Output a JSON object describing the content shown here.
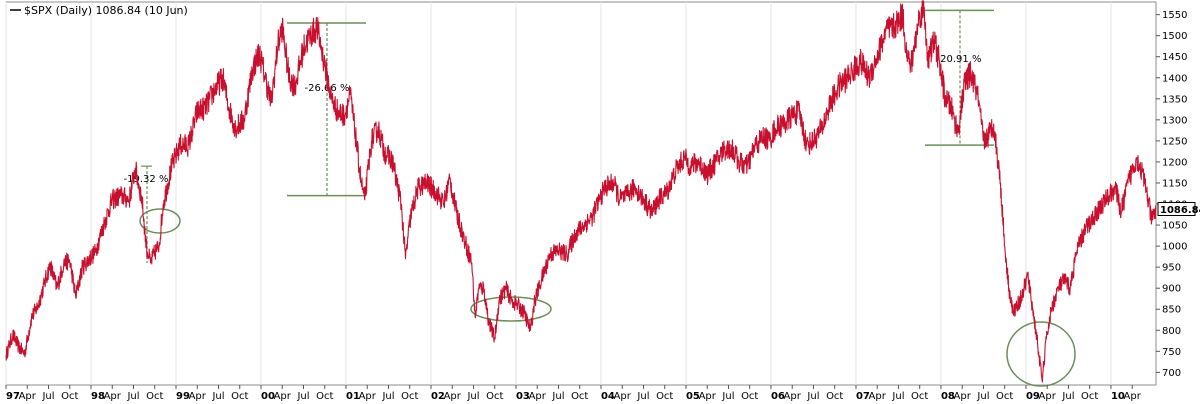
{
  "chart_data": {
    "type": "line",
    "title": "$SPX (Daily) 1086.84 (10 Jun)",
    "last_value": "1086.84",
    "ylim": [
      670,
      1580
    ],
    "y_ticks": [
      "1550",
      "1500",
      "1450",
      "1400",
      "1350",
      "1300",
      "1250",
      "1200",
      "1150",
      "1100",
      "1050",
      "1000",
      "950",
      "900",
      "850",
      "800",
      "750",
      "700"
    ],
    "x_range": [
      1997.0,
      2010.53
    ],
    "x_ticks": [
      {
        "label": "97",
        "x": 1997.0,
        "major": true
      },
      {
        "label": "Apr",
        "x": 1997.25
      },
      {
        "label": "Jul",
        "x": 1997.5
      },
      {
        "label": "Oct",
        "x": 1997.75
      },
      {
        "label": "98",
        "x": 1998.0,
        "major": true
      },
      {
        "label": "Apr",
        "x": 1998.25
      },
      {
        "label": "Jul",
        "x": 1998.5
      },
      {
        "label": "Oct",
        "x": 1998.75
      },
      {
        "label": "99",
        "x": 1999.0,
        "major": true
      },
      {
        "label": "Apr",
        "x": 1999.25
      },
      {
        "label": "Jul",
        "x": 1999.5
      },
      {
        "label": "Oct",
        "x": 1999.75
      },
      {
        "label": "00",
        "x": 2000.0,
        "major": true
      },
      {
        "label": "Apr",
        "x": 2000.25
      },
      {
        "label": "Jul",
        "x": 2000.5
      },
      {
        "label": "Oct",
        "x": 2000.75
      },
      {
        "label": "01",
        "x": 2001.0,
        "major": true
      },
      {
        "label": "Apr",
        "x": 2001.25
      },
      {
        "label": "Jul",
        "x": 2001.5
      },
      {
        "label": "Oct",
        "x": 2001.75
      },
      {
        "label": "02",
        "x": 2002.0,
        "major": true
      },
      {
        "label": "Apr",
        "x": 2002.25
      },
      {
        "label": "Jul",
        "x": 2002.5
      },
      {
        "label": "Oct",
        "x": 2002.75
      },
      {
        "label": "03",
        "x": 2003.0,
        "major": true
      },
      {
        "label": "Apr",
        "x": 2003.25
      },
      {
        "label": "Jul",
        "x": 2003.5
      },
      {
        "label": "Oct",
        "x": 2003.75
      },
      {
        "label": "04",
        "x": 2004.0,
        "major": true
      },
      {
        "label": "Apr",
        "x": 2004.25
      },
      {
        "label": "Jul",
        "x": 2004.5
      },
      {
        "label": "Oct",
        "x": 2004.75
      },
      {
        "label": "05",
        "x": 2005.0,
        "major": true
      },
      {
        "label": "Apr",
        "x": 2005.25
      },
      {
        "label": "Jul",
        "x": 2005.5
      },
      {
        "label": "Oct",
        "x": 2005.75
      },
      {
        "label": "06",
        "x": 2006.0,
        "major": true
      },
      {
        "label": "Apr",
        "x": 2006.25
      },
      {
        "label": "Jul",
        "x": 2006.5
      },
      {
        "label": "Oct",
        "x": 2006.75
      },
      {
        "label": "07",
        "x": 2007.0,
        "major": true
      },
      {
        "label": "Apr",
        "x": 2007.25
      },
      {
        "label": "Jul",
        "x": 2007.5
      },
      {
        "label": "Oct",
        "x": 2007.75
      },
      {
        "label": "08",
        "x": 2008.0,
        "major": true
      },
      {
        "label": "Apr",
        "x": 2008.25
      },
      {
        "label": "Jul",
        "x": 2008.5
      },
      {
        "label": "Oct",
        "x": 2008.75
      },
      {
        "label": "09",
        "x": 2009.0,
        "major": true
      },
      {
        "label": "Apr",
        "x": 2009.25
      },
      {
        "label": "Jul",
        "x": 2009.5
      },
      {
        "label": "Oct",
        "x": 2009.75
      },
      {
        "label": "10",
        "x": 2010.0,
        "major": true
      },
      {
        "label": "Apr",
        "x": 2010.25
      }
    ],
    "series": [
      {
        "values": [
          [
            1997.0,
            740
          ],
          [
            1997.08,
            790
          ],
          [
            1997.15,
            760
          ],
          [
            1997.22,
            745
          ],
          [
            1997.3,
            830
          ],
          [
            1997.38,
            860
          ],
          [
            1997.45,
            910
          ],
          [
            1997.52,
            955
          ],
          [
            1997.6,
            900
          ],
          [
            1997.68,
            960
          ],
          [
            1997.75,
            965
          ],
          [
            1997.82,
            880
          ],
          [
            1997.9,
            950
          ],
          [
            1997.98,
            970
          ],
          [
            1998.05,
            985
          ],
          [
            1998.15,
            1050
          ],
          [
            1998.25,
            1110
          ],
          [
            1998.35,
            1120
          ],
          [
            1998.45,
            1110
          ],
          [
            1998.52,
            1185
          ],
          [
            1998.6,
            1110
          ],
          [
            1998.65,
            1000
          ],
          [
            1998.7,
            960
          ],
          [
            1998.75,
            985
          ],
          [
            1998.8,
            1000
          ],
          [
            1998.85,
            1100
          ],
          [
            1998.95,
            1190
          ],
          [
            1999.05,
            1240
          ],
          [
            1999.15,
            1240
          ],
          [
            1999.25,
            1320
          ],
          [
            1999.35,
            1330
          ],
          [
            1999.45,
            1370
          ],
          [
            1999.55,
            1400
          ],
          [
            1999.62,
            1330
          ],
          [
            1999.7,
            1280
          ],
          [
            1999.8,
            1300
          ],
          [
            1999.9,
            1420
          ],
          [
            1999.98,
            1460
          ],
          [
            2000.05,
            1400
          ],
          [
            2000.12,
            1340
          ],
          [
            2000.2,
            1480
          ],
          [
            2000.25,
            1520
          ],
          [
            2000.33,
            1400
          ],
          [
            2000.4,
            1380
          ],
          [
            2000.5,
            1470
          ],
          [
            2000.58,
            1500
          ],
          [
            2000.66,
            1520
          ],
          [
            2000.75,
            1430
          ],
          [
            2000.83,
            1350
          ],
          [
            2000.9,
            1320
          ],
          [
            2000.98,
            1310
          ],
          [
            2001.05,
            1360
          ],
          [
            2001.12,
            1250
          ],
          [
            2001.18,
            1150
          ],
          [
            2001.22,
            1110
          ],
          [
            2001.3,
            1250
          ],
          [
            2001.38,
            1280
          ],
          [
            2001.45,
            1225
          ],
          [
            2001.55,
            1200
          ],
          [
            2001.65,
            1100
          ],
          [
            2001.7,
            970
          ],
          [
            2001.76,
            1070
          ],
          [
            2001.85,
            1140
          ],
          [
            2001.95,
            1150
          ],
          [
            2002.05,
            1130
          ],
          [
            2002.15,
            1100
          ],
          [
            2002.22,
            1160
          ],
          [
            2002.3,
            1080
          ],
          [
            2002.4,
            1010
          ],
          [
            2002.48,
            960
          ],
          [
            2002.52,
            830
          ],
          [
            2002.56,
            900
          ],
          [
            2002.62,
            900
          ],
          [
            2002.68,
            820
          ],
          [
            2002.75,
            780
          ],
          [
            2002.8,
            870
          ],
          [
            2002.88,
            900
          ],
          [
            2002.95,
            870
          ],
          [
            2003.02,
            860
          ],
          [
            2003.1,
            840
          ],
          [
            2003.17,
            800
          ],
          [
            2003.22,
            870
          ],
          [
            2003.3,
            920
          ],
          [
            2003.4,
            980
          ],
          [
            2003.5,
            990
          ],
          [
            2003.6,
            980
          ],
          [
            2003.7,
            1030
          ],
          [
            2003.8,
            1050
          ],
          [
            2003.9,
            1070
          ],
          [
            2003.98,
            1110
          ],
          [
            2004.05,
            1140
          ],
          [
            2004.15,
            1150
          ],
          [
            2004.22,
            1110
          ],
          [
            2004.3,
            1120
          ],
          [
            2004.4,
            1140
          ],
          [
            2004.5,
            1110
          ],
          [
            2004.6,
            1080
          ],
          [
            2004.68,
            1110
          ],
          [
            2004.78,
            1130
          ],
          [
            2004.88,
            1180
          ],
          [
            2004.98,
            1210
          ],
          [
            2005.05,
            1190
          ],
          [
            2005.15,
            1200
          ],
          [
            2005.25,
            1170
          ],
          [
            2005.35,
            1200
          ],
          [
            2005.45,
            1230
          ],
          [
            2005.55,
            1230
          ],
          [
            2005.62,
            1200
          ],
          [
            2005.72,
            1190
          ],
          [
            2005.82,
            1240
          ],
          [
            2005.92,
            1260
          ],
          [
            2005.98,
            1250
          ],
          [
            2006.05,
            1280
          ],
          [
            2006.15,
            1290
          ],
          [
            2006.25,
            1310
          ],
          [
            2006.33,
            1320
          ],
          [
            2006.42,
            1240
          ],
          [
            2006.5,
            1250
          ],
          [
            2006.6,
            1280
          ],
          [
            2006.7,
            1340
          ],
          [
            2006.8,
            1380
          ],
          [
            2006.9,
            1400
          ],
          [
            2006.98,
            1420
          ],
          [
            2007.05,
            1440
          ],
          [
            2007.15,
            1400
          ],
          [
            2007.25,
            1450
          ],
          [
            2007.35,
            1510
          ],
          [
            2007.45,
            1520
          ],
          [
            2007.55,
            1550
          ],
          [
            2007.6,
            1450
          ],
          [
            2007.65,
            1430
          ],
          [
            2007.75,
            1550
          ],
          [
            2007.8,
            1560
          ],
          [
            2007.85,
            1440
          ],
          [
            2007.92,
            1490
          ],
          [
            2007.98,
            1440
          ],
          [
            2008.05,
            1350
          ],
          [
            2008.12,
            1330
          ],
          [
            2008.2,
            1270
          ],
          [
            2008.28,
            1390
          ],
          [
            2008.35,
            1410
          ],
          [
            2008.43,
            1360
          ],
          [
            2008.5,
            1250
          ],
          [
            2008.55,
            1260
          ],
          [
            2008.62,
            1290
          ],
          [
            2008.7,
            1150
          ],
          [
            2008.75,
            1000
          ],
          [
            2008.8,
            900
          ],
          [
            2008.85,
            840
          ],
          [
            2008.9,
            860
          ],
          [
            2008.95,
            880
          ],
          [
            2009.02,
            930
          ],
          [
            2009.08,
            850
          ],
          [
            2009.13,
            780
          ],
          [
            2009.19,
            680
          ],
          [
            2009.24,
            780
          ],
          [
            2009.3,
            850
          ],
          [
            2009.38,
            900
          ],
          [
            2009.45,
            920
          ],
          [
            2009.52,
            900
          ],
          [
            2009.6,
            990
          ],
          [
            2009.7,
            1040
          ],
          [
            2009.8,
            1070
          ],
          [
            2009.9,
            1100
          ],
          [
            2009.98,
            1120
          ],
          [
            2010.05,
            1140
          ],
          [
            2010.12,
            1080
          ],
          [
            2010.2,
            1150
          ],
          [
            2010.3,
            1210
          ],
          [
            2010.36,
            1180
          ],
          [
            2010.42,
            1130
          ],
          [
            2010.48,
            1060
          ],
          [
            2010.53,
            1087
          ]
        ]
      }
    ],
    "annotations": [
      {
        "label": "-19.32 %",
        "from": 1190,
        "to": 960
      },
      {
        "label": "-26.66 %",
        "from": 1530,
        "to": 1120
      },
      {
        "label": "-20.91 %",
        "from": 1560,
        "to": 1240
      }
    ]
  }
}
